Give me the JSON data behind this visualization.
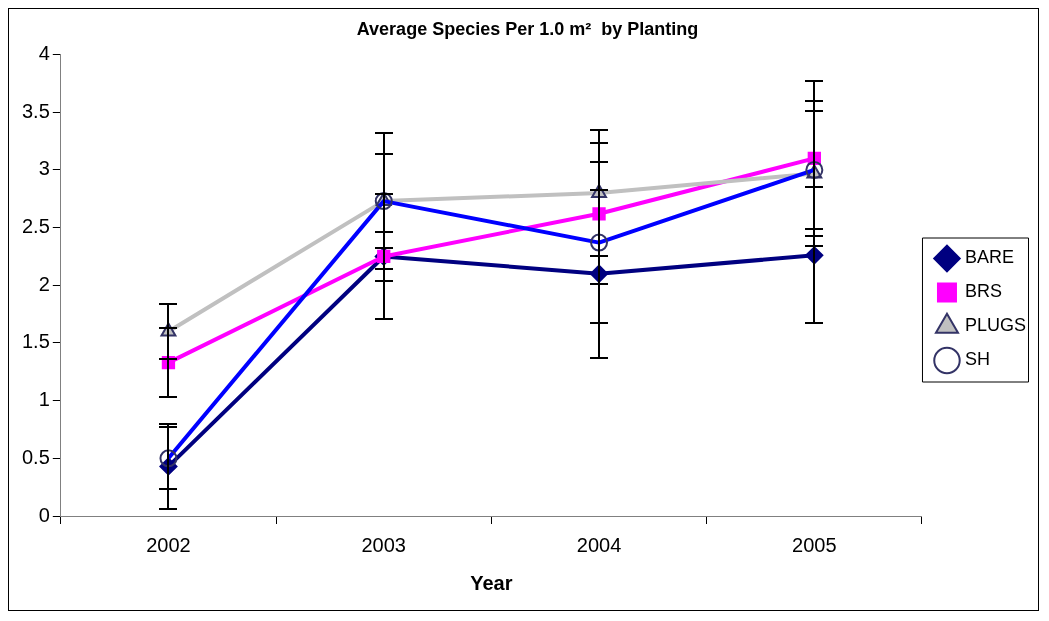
{
  "chart_data": {
    "type": "line",
    "title": "Average Species Per 1.0 m²  by Planting",
    "xlabel": "Year",
    "categories": [
      "2002",
      "2003",
      "2004",
      "2005"
    ],
    "series": [
      {
        "name": "BARE",
        "color": "#000080",
        "marker": "diamond",
        "values": [
          0.43,
          2.25,
          2.1,
          2.26
        ],
        "errors": [
          0.37,
          0.54,
          0.73,
          0.59
        ]
      },
      {
        "name": "BRS",
        "color": "#ff00ff",
        "marker": "square",
        "values": [
          1.33,
          2.25,
          2.62,
          3.1
        ],
        "errors": [
          0.3,
          0.21,
          0.61,
          0.67
        ]
      },
      {
        "name": "PLUGS",
        "color": "#c0c0c0",
        "marker": "triangle",
        "values": [
          1.6,
          2.73,
          2.8,
          2.97
        ],
        "errors": [
          0.24,
          0.59,
          0.55,
          0.63
        ]
      },
      {
        "name": "SH",
        "color": "#0000ff",
        "marker": "circle",
        "values": [
          0.5,
          2.73,
          2.37,
          3.0
        ],
        "errors": [
          0.27,
          0.41,
          0.7,
          0.51
        ]
      }
    ],
    "ylim": [
      0,
      4
    ],
    "yticks": [
      0,
      0.5,
      1,
      1.5,
      2,
      2.5,
      3,
      3.5,
      4
    ],
    "grid": false,
    "legend": "right"
  }
}
